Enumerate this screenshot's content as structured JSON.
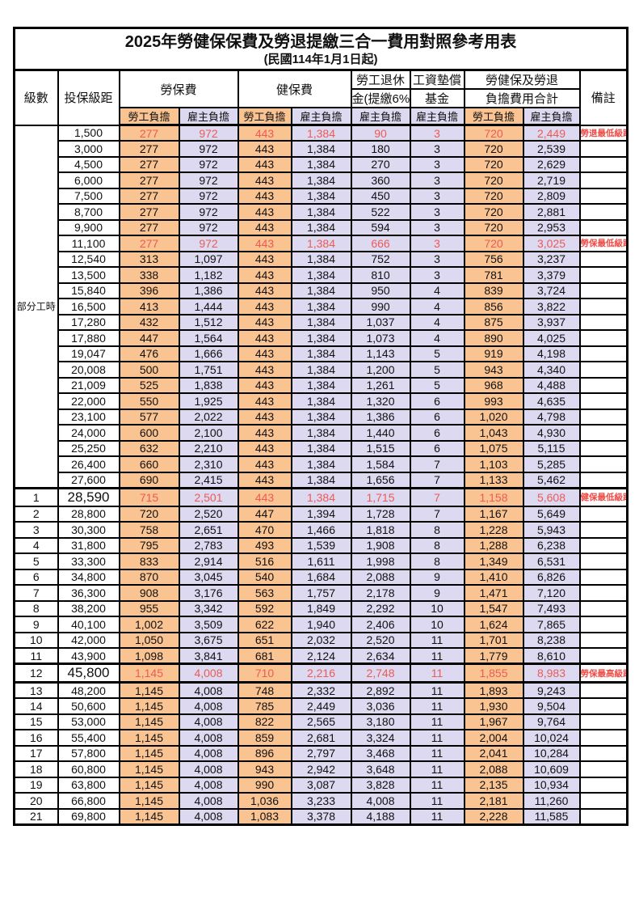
{
  "title": "2025年勞健保保費及勞退提繳三合一費用對照參考用表",
  "subtitle": "(民國114年1月1日起)",
  "header": {
    "level": "級數",
    "bracket": "投保級距",
    "labor_ins": "勞保費",
    "health_ins": "健保費",
    "pension_l1": "勞工退休",
    "pension_l2": "金(提繳6%)",
    "wage_fund_l1": "工資墊償",
    "wage_fund_l2": "基金",
    "total_l1": "勞健保及勞退",
    "total_l2": "負擔費用合計",
    "remark": "備註",
    "worker": "勞工負擔",
    "employer": "雇主負擔"
  },
  "part_time_label": "部分工時",
  "colors": {
    "worker_bg": "#FAC392",
    "employer_bg": "#DCD9F0",
    "highlight_text": "#EC5B57",
    "note_text": "#F04A45",
    "border": "#000000"
  },
  "rows": [
    {
      "level": "",
      "bracket": "1,500",
      "cells": [
        "277",
        "972",
        "443",
        "1,384",
        "90",
        "3",
        "720",
        "2,449"
      ],
      "note": "勞退最低級距",
      "red": true,
      "big": false
    },
    {
      "level": "",
      "bracket": "3,000",
      "cells": [
        "277",
        "972",
        "443",
        "1,384",
        "180",
        "3",
        "720",
        "2,539"
      ],
      "note": "",
      "red": false,
      "big": false
    },
    {
      "level": "",
      "bracket": "4,500",
      "cells": [
        "277",
        "972",
        "443",
        "1,384",
        "270",
        "3",
        "720",
        "2,629"
      ],
      "note": "",
      "red": false,
      "big": false
    },
    {
      "level": "",
      "bracket": "6,000",
      "cells": [
        "277",
        "972",
        "443",
        "1,384",
        "360",
        "3",
        "720",
        "2,719"
      ],
      "note": "",
      "red": false,
      "big": false
    },
    {
      "level": "",
      "bracket": "7,500",
      "cells": [
        "277",
        "972",
        "443",
        "1,384",
        "450",
        "3",
        "720",
        "2,809"
      ],
      "note": "",
      "red": false,
      "big": false
    },
    {
      "level": "",
      "bracket": "8,700",
      "cells": [
        "277",
        "972",
        "443",
        "1,384",
        "522",
        "3",
        "720",
        "2,881"
      ],
      "note": "",
      "red": false,
      "big": false
    },
    {
      "level": "",
      "bracket": "9,900",
      "cells": [
        "277",
        "972",
        "443",
        "1,384",
        "594",
        "3",
        "720",
        "2,953"
      ],
      "note": "",
      "red": false,
      "big": false
    },
    {
      "level": "",
      "bracket": "11,100",
      "cells": [
        "277",
        "972",
        "443",
        "1,384",
        "666",
        "3",
        "720",
        "3,025"
      ],
      "note": "勞保最低級距",
      "red": true,
      "big": false
    },
    {
      "level": "",
      "bracket": "12,540",
      "cells": [
        "313",
        "1,097",
        "443",
        "1,384",
        "752",
        "3",
        "756",
        "3,237"
      ],
      "note": "",
      "red": false,
      "big": false
    },
    {
      "level": "",
      "bracket": "13,500",
      "cells": [
        "338",
        "1,182",
        "443",
        "1,384",
        "810",
        "3",
        "781",
        "3,379"
      ],
      "note": "",
      "red": false,
      "big": false
    },
    {
      "level": "",
      "bracket": "15,840",
      "cells": [
        "396",
        "1,386",
        "443",
        "1,384",
        "950",
        "4",
        "839",
        "3,724"
      ],
      "note": "",
      "red": false,
      "big": false
    },
    {
      "level": "",
      "bracket": "16,500",
      "cells": [
        "413",
        "1,444",
        "443",
        "1,384",
        "990",
        "4",
        "856",
        "3,822"
      ],
      "note": "",
      "red": false,
      "big": false
    },
    {
      "level": "",
      "bracket": "17,280",
      "cells": [
        "432",
        "1,512",
        "443",
        "1,384",
        "1,037",
        "4",
        "875",
        "3,937"
      ],
      "note": "",
      "red": false,
      "big": false
    },
    {
      "level": "",
      "bracket": "17,880",
      "cells": [
        "447",
        "1,564",
        "443",
        "1,384",
        "1,073",
        "4",
        "890",
        "4,025"
      ],
      "note": "",
      "red": false,
      "big": false
    },
    {
      "level": "",
      "bracket": "19,047",
      "cells": [
        "476",
        "1,666",
        "443",
        "1,384",
        "1,143",
        "5",
        "919",
        "4,198"
      ],
      "note": "",
      "red": false,
      "big": false
    },
    {
      "level": "",
      "bracket": "20,008",
      "cells": [
        "500",
        "1,751",
        "443",
        "1,384",
        "1,200",
        "5",
        "943",
        "4,340"
      ],
      "note": "",
      "red": false,
      "big": false
    },
    {
      "level": "",
      "bracket": "21,009",
      "cells": [
        "525",
        "1,838",
        "443",
        "1,384",
        "1,261",
        "5",
        "968",
        "4,488"
      ],
      "note": "",
      "red": false,
      "big": false
    },
    {
      "level": "",
      "bracket": "22,000",
      "cells": [
        "550",
        "1,925",
        "443",
        "1,384",
        "1,320",
        "6",
        "993",
        "4,635"
      ],
      "note": "",
      "red": false,
      "big": false
    },
    {
      "level": "",
      "bracket": "23,100",
      "cells": [
        "577",
        "2,022",
        "443",
        "1,384",
        "1,386",
        "6",
        "1,020",
        "4,798"
      ],
      "note": "",
      "red": false,
      "big": false
    },
    {
      "level": "",
      "bracket": "24,000",
      "cells": [
        "600",
        "2,100",
        "443",
        "1,384",
        "1,440",
        "6",
        "1,043",
        "4,930"
      ],
      "note": "",
      "red": false,
      "big": false
    },
    {
      "level": "",
      "bracket": "25,250",
      "cells": [
        "632",
        "2,210",
        "443",
        "1,384",
        "1,515",
        "6",
        "1,075",
        "5,115"
      ],
      "note": "",
      "red": false,
      "big": false
    },
    {
      "level": "",
      "bracket": "26,400",
      "cells": [
        "660",
        "2,310",
        "443",
        "1,384",
        "1,584",
        "7",
        "1,103",
        "5,285"
      ],
      "note": "",
      "red": false,
      "big": false
    },
    {
      "level": "",
      "bracket": "27,600",
      "cells": [
        "690",
        "2,415",
        "443",
        "1,384",
        "1,656",
        "7",
        "1,133",
        "5,462"
      ],
      "note": "",
      "red": false,
      "big": false
    },
    {
      "level": "1",
      "bracket": "28,590",
      "cells": [
        "715",
        "2,501",
        "443",
        "1,384",
        "1,715",
        "7",
        "1,158",
        "5,608"
      ],
      "note": "健保最低級距",
      "red": true,
      "big": true
    },
    {
      "level": "2",
      "bracket": "28,800",
      "cells": [
        "720",
        "2,520",
        "447",
        "1,394",
        "1,728",
        "7",
        "1,167",
        "5,649"
      ],
      "note": "",
      "red": false,
      "big": false
    },
    {
      "level": "3",
      "bracket": "30,300",
      "cells": [
        "758",
        "2,651",
        "470",
        "1,466",
        "1,818",
        "8",
        "1,228",
        "5,943"
      ],
      "note": "",
      "red": false,
      "big": false
    },
    {
      "level": "4",
      "bracket": "31,800",
      "cells": [
        "795",
        "2,783",
        "493",
        "1,539",
        "1,908",
        "8",
        "1,288",
        "6,238"
      ],
      "note": "",
      "red": false,
      "big": false
    },
    {
      "level": "5",
      "bracket": "33,300",
      "cells": [
        "833",
        "2,914",
        "516",
        "1,611",
        "1,998",
        "8",
        "1,349",
        "6,531"
      ],
      "note": "",
      "red": false,
      "big": false
    },
    {
      "level": "6",
      "bracket": "34,800",
      "cells": [
        "870",
        "3,045",
        "540",
        "1,684",
        "2,088",
        "9",
        "1,410",
        "6,826"
      ],
      "note": "",
      "red": false,
      "big": false
    },
    {
      "level": "7",
      "bracket": "36,300",
      "cells": [
        "908",
        "3,176",
        "563",
        "1,757",
        "2,178",
        "9",
        "1,471",
        "7,120"
      ],
      "note": "",
      "red": false,
      "big": false
    },
    {
      "level": "8",
      "bracket": "38,200",
      "cells": [
        "955",
        "3,342",
        "592",
        "1,849",
        "2,292",
        "10",
        "1,547",
        "7,493"
      ],
      "note": "",
      "red": false,
      "big": false
    },
    {
      "level": "9",
      "bracket": "40,100",
      "cells": [
        "1,002",
        "3,509",
        "622",
        "1,940",
        "2,406",
        "10",
        "1,624",
        "7,865"
      ],
      "note": "",
      "red": false,
      "big": false
    },
    {
      "level": "10",
      "bracket": "42,000",
      "cells": [
        "1,050",
        "3,675",
        "651",
        "2,032",
        "2,520",
        "11",
        "1,701",
        "8,238"
      ],
      "note": "",
      "red": false,
      "big": false
    },
    {
      "level": "11",
      "bracket": "43,900",
      "cells": [
        "1,098",
        "3,841",
        "681",
        "2,124",
        "2,634",
        "11",
        "1,779",
        "8,610"
      ],
      "note": "",
      "red": false,
      "big": false
    },
    {
      "level": "12",
      "bracket": "45,800",
      "cells": [
        "1,145",
        "4,008",
        "710",
        "2,216",
        "2,748",
        "11",
        "1,855",
        "8,983"
      ],
      "note": "勞保最高級距",
      "red": true,
      "big": true
    },
    {
      "level": "13",
      "bracket": "48,200",
      "cells": [
        "1,145",
        "4,008",
        "748",
        "2,332",
        "2,892",
        "11",
        "1,893",
        "9,243"
      ],
      "note": "",
      "red": false,
      "big": false
    },
    {
      "level": "14",
      "bracket": "50,600",
      "cells": [
        "1,145",
        "4,008",
        "785",
        "2,449",
        "3,036",
        "11",
        "1,930",
        "9,504"
      ],
      "note": "",
      "red": false,
      "big": false
    },
    {
      "level": "15",
      "bracket": "53,000",
      "cells": [
        "1,145",
        "4,008",
        "822",
        "2,565",
        "3,180",
        "11",
        "1,967",
        "9,764"
      ],
      "note": "",
      "red": false,
      "big": false
    },
    {
      "level": "16",
      "bracket": "55,400",
      "cells": [
        "1,145",
        "4,008",
        "859",
        "2,681",
        "3,324",
        "11",
        "2,004",
        "10,024"
      ],
      "note": "",
      "red": false,
      "big": false
    },
    {
      "level": "17",
      "bracket": "57,800",
      "cells": [
        "1,145",
        "4,008",
        "896",
        "2,797",
        "3,468",
        "11",
        "2,041",
        "10,284"
      ],
      "note": "",
      "red": false,
      "big": false
    },
    {
      "level": "18",
      "bracket": "60,800",
      "cells": [
        "1,145",
        "4,008",
        "943",
        "2,942",
        "3,648",
        "11",
        "2,088",
        "10,609"
      ],
      "note": "",
      "red": false,
      "big": false
    },
    {
      "level": "19",
      "bracket": "63,800",
      "cells": [
        "1,145",
        "4,008",
        "990",
        "3,087",
        "3,828",
        "11",
        "2,135",
        "10,934"
      ],
      "note": "",
      "red": false,
      "big": false
    },
    {
      "level": "20",
      "bracket": "66,800",
      "cells": [
        "1,145",
        "4,008",
        "1,036",
        "3,233",
        "4,008",
        "11",
        "2,181",
        "11,260"
      ],
      "note": "",
      "red": false,
      "big": false
    },
    {
      "level": "21",
      "bracket": "69,800",
      "cells": [
        "1,145",
        "4,008",
        "1,083",
        "3,378",
        "4,188",
        "11",
        "2,228",
        "11,585"
      ],
      "note": "",
      "red": false,
      "big": false
    }
  ]
}
